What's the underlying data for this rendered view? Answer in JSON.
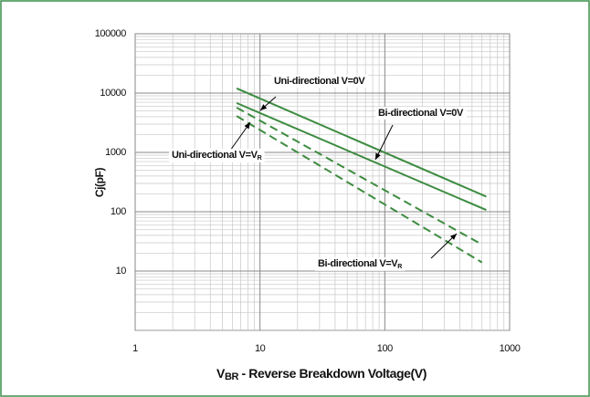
{
  "chart_data": {
    "type": "line",
    "x_label": {
      "main": "V",
      "sub": "BR",
      "rest": " - Reverse Breakdown Voltage(V)"
    },
    "y_label": "Cj(pF)",
    "xlim": [
      1,
      1000
    ],
    "xticks": [
      1,
      10,
      100,
      1000
    ],
    "ylim": [
      1,
      100000
    ],
    "yticks": [
      10,
      100,
      1000,
      10000,
      100000
    ],
    "log_x": true,
    "log_y": true,
    "grid": true,
    "minor_grid": true,
    "series": [
      {
        "name": "Uni-directional V=0V",
        "color": "#3d8c40",
        "dash": false,
        "x": [
          6.5,
          650
        ],
        "values": [
          12000,
          180
        ]
      },
      {
        "name": "Bi-directional V=0V",
        "color": "#3d8c40",
        "dash": false,
        "x": [
          6.5,
          650
        ],
        "values": [
          6800,
          107
        ]
      },
      {
        "name": "Uni-directional V=VR",
        "color": "#3d8c40",
        "dash": true,
        "x": [
          6.5,
          600
        ],
        "values": [
          5700,
          28
        ]
      },
      {
        "name": "Bi-directional V=VR",
        "color": "#3d8c40",
        "dash": true,
        "x": [
          6.5,
          600
        ],
        "values": [
          4100,
          14
        ]
      }
    ],
    "annotations": [
      {
        "text": "Uni-directional V=0V"
      },
      {
        "text": "Bi-directional V=0V"
      },
      {
        "text": "Uni-directional V=V",
        "sub": "R"
      },
      {
        "text": "Bi-directional V=V",
        "sub": "R"
      }
    ]
  }
}
